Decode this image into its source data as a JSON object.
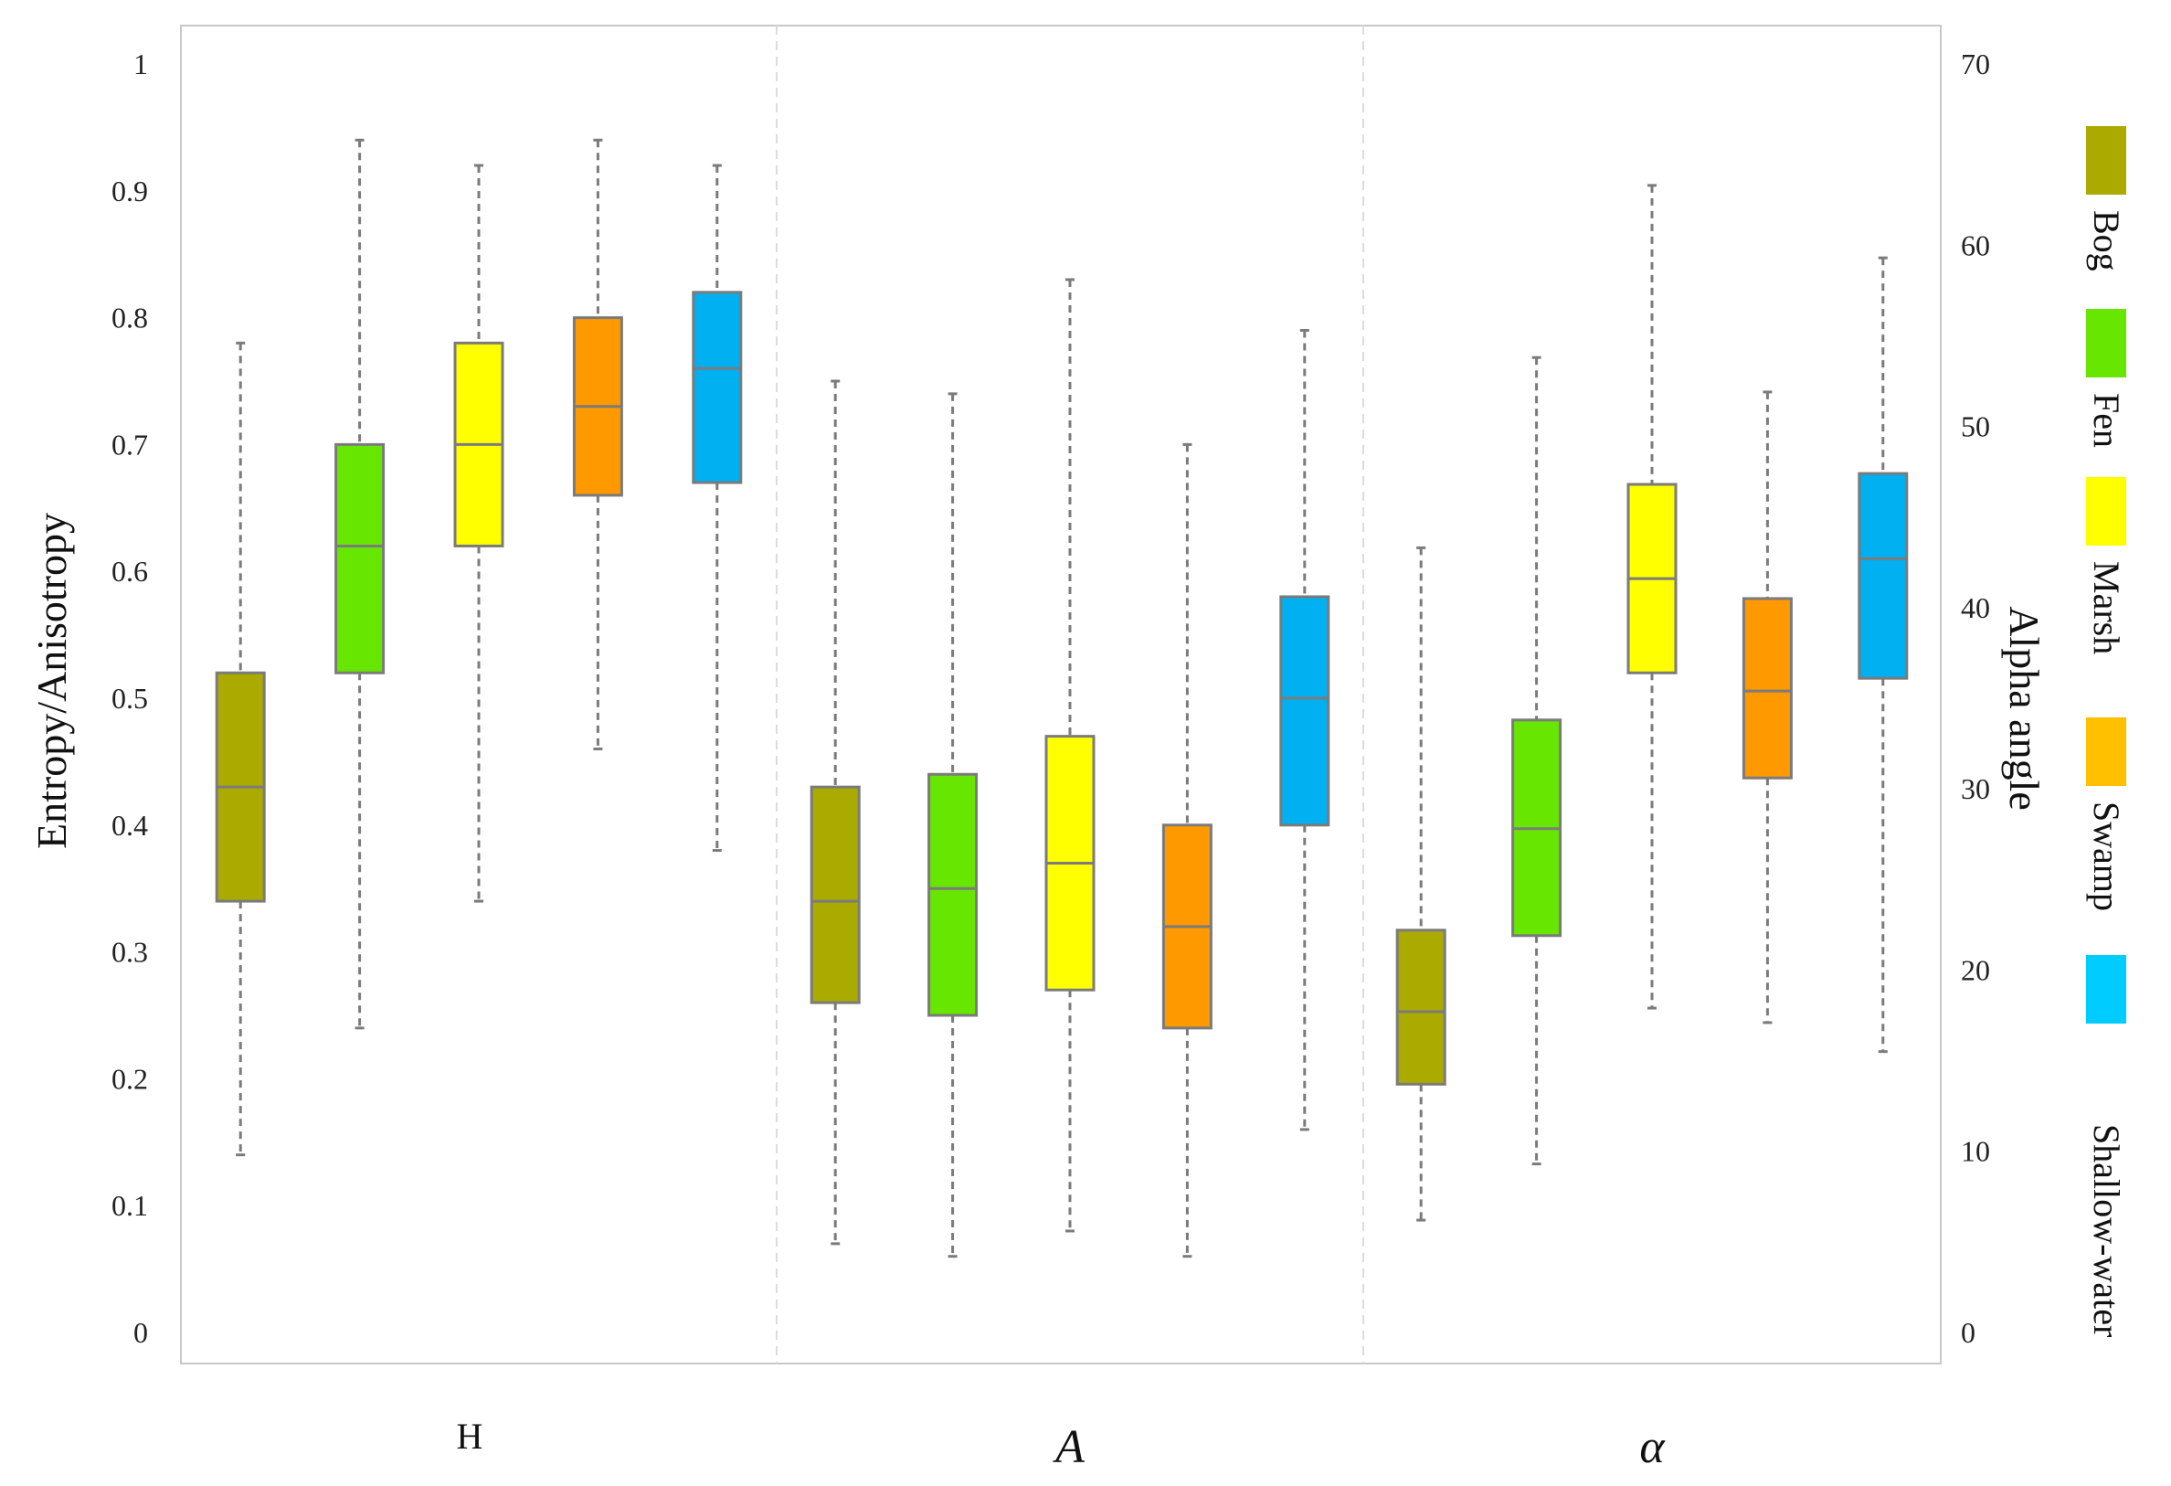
{
  "chart_data": {
    "type": "box",
    "ylabel_left": "Entropy/Anisotropy",
    "ylabel_right": "Alpha angle",
    "ylim_left": [
      0,
      1
    ],
    "ylim_right": [
      0,
      70
    ],
    "yticks_left": [
      "0",
      "0.1",
      "0.2",
      "0.3",
      "0.4",
      "0.5",
      "0.6",
      "0.7",
      "0.8",
      "0.9",
      "1"
    ],
    "yticks_right": [
      "0",
      "10",
      "20",
      "30",
      "40",
      "50",
      "60",
      "70"
    ],
    "grid": false,
    "legend_position": "right",
    "classes": [
      {
        "name": "Bog",
        "box_color": "#aaaa00",
        "legend_color": "#aaaa00"
      },
      {
        "name": "Fen",
        "box_color": "#66e600",
        "legend_color": "#66e600"
      },
      {
        "name": "Marsh",
        "box_color": "#ffff00",
        "legend_color": "#ffff00"
      },
      {
        "name": "Swamp",
        "box_color": "#ff9900",
        "legend_color": "#ffc000"
      },
      {
        "name": "Shallow-water",
        "box_color": "#00b0f0",
        "legend_color": "#00ccff"
      }
    ],
    "groups": [
      {
        "label": "H",
        "axis": "left",
        "boxes": [
          {
            "class": "Bog",
            "min": 0.14,
            "q1": 0.34,
            "median": 0.43,
            "q3": 0.52,
            "max": 0.78
          },
          {
            "class": "Fen",
            "min": 0.24,
            "q1": 0.52,
            "median": 0.62,
            "q3": 0.7,
            "max": 0.94
          },
          {
            "class": "Marsh",
            "min": 0.34,
            "q1": 0.62,
            "median": 0.7,
            "q3": 0.78,
            "max": 0.92
          },
          {
            "class": "Swamp",
            "min": 0.46,
            "q1": 0.66,
            "median": 0.73,
            "q3": 0.8,
            "max": 0.94
          },
          {
            "class": "Shallow-water",
            "min": 0.38,
            "q1": 0.67,
            "median": 0.76,
            "q3": 0.82,
            "max": 0.92
          }
        ]
      },
      {
        "label": "A",
        "axis": "left",
        "boxes": [
          {
            "class": "Bog",
            "min": 0.07,
            "q1": 0.26,
            "median": 0.34,
            "q3": 0.43,
            "max": 0.75
          },
          {
            "class": "Fen",
            "min": 0.06,
            "q1": 0.25,
            "median": 0.35,
            "q3": 0.44,
            "max": 0.74
          },
          {
            "class": "Marsh",
            "min": 0.08,
            "q1": 0.27,
            "median": 0.37,
            "q3": 0.47,
            "max": 0.83
          },
          {
            "class": "Swamp",
            "min": 0.06,
            "q1": 0.24,
            "median": 0.32,
            "q3": 0.4,
            "max": 0.7
          },
          {
            "class": "Shallow-water",
            "min": 0.16,
            "q1": 0.4,
            "median": 0.5,
            "q3": 0.58,
            "max": 0.79
          }
        ]
      },
      {
        "label": "α",
        "axis": "right",
        "boxes": [
          {
            "class": "Bog",
            "min": 6.2,
            "q1": 13.7,
            "median": 17.7,
            "q3": 22.2,
            "max": 43.3
          },
          {
            "class": "Fen",
            "min": 9.3,
            "q1": 21.9,
            "median": 27.8,
            "q3": 33.8,
            "max": 53.8
          },
          {
            "class": "Marsh",
            "min": 17.9,
            "q1": 36.4,
            "median": 41.6,
            "q3": 46.8,
            "max": 63.3
          },
          {
            "class": "Swamp",
            "min": 17.1,
            "q1": 30.6,
            "median": 35.4,
            "q3": 40.5,
            "max": 51.9
          },
          {
            "class": "Shallow-water",
            "min": 15.5,
            "q1": 36.1,
            "median": 42.7,
            "q3": 47.4,
            "max": 59.3
          }
        ]
      }
    ]
  }
}
